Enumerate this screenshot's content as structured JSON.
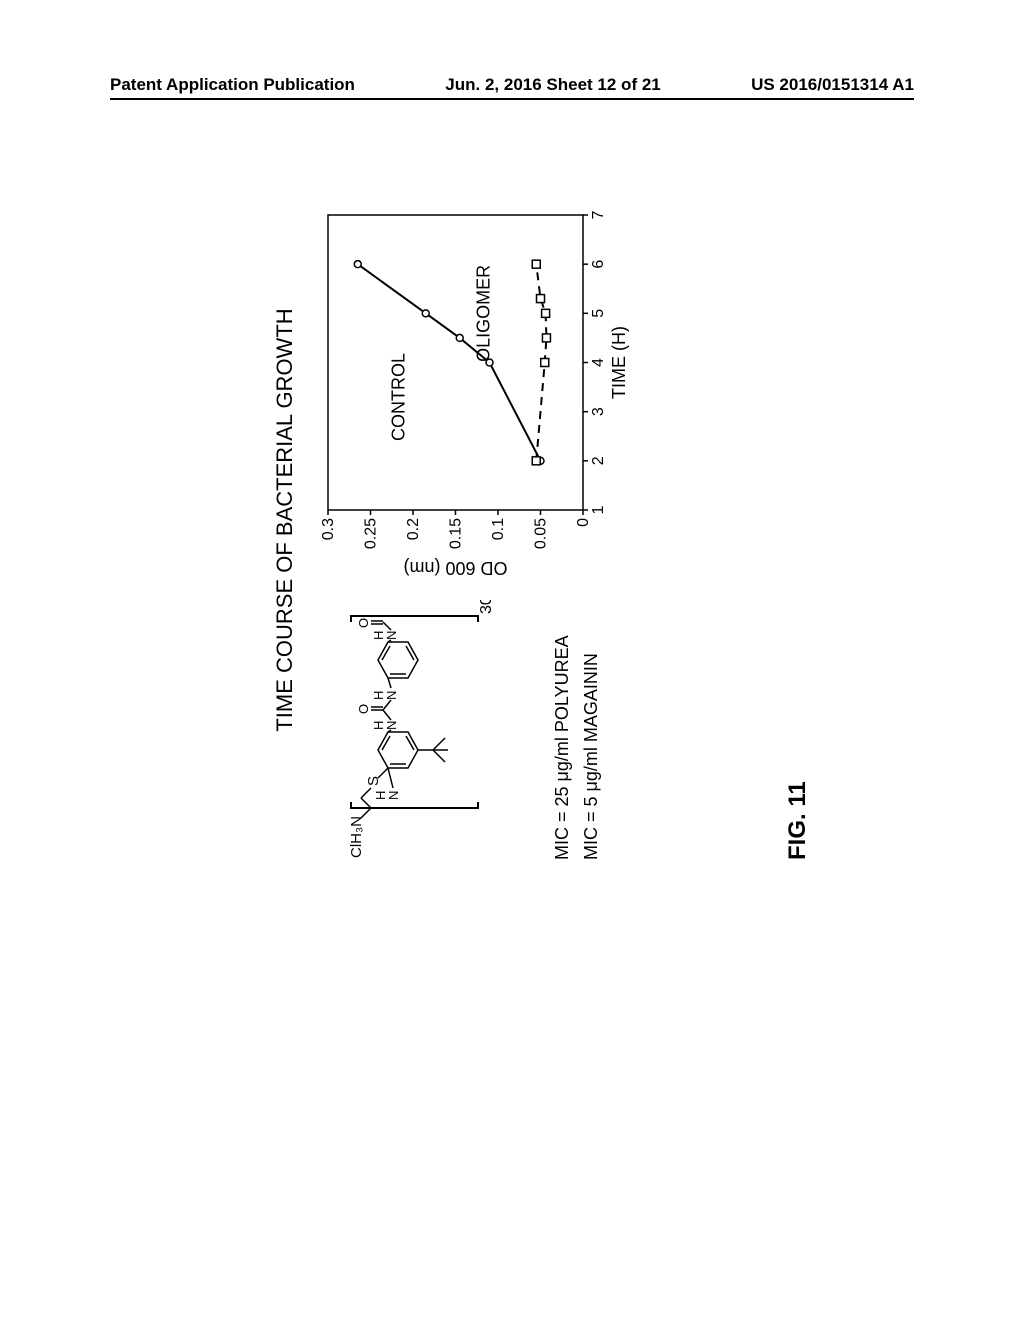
{
  "header": {
    "left": "Patent Application Publication",
    "center": "Jun. 2, 2016  Sheet 12 of 21",
    "right": "US 2016/0151314 A1"
  },
  "figure": {
    "title": "TIME COURSE OF BACTERIAL GROWTH",
    "number": "FIG. 11",
    "mic": {
      "line1": "MIC  =  25 μg/ml  POLYUREA",
      "line2": "MIC  =  5 μg/ml  MAGAININ"
    },
    "chemical": {
      "label_cih3n": "ClH₃N",
      "label_s": "S",
      "label_h": "H",
      "label_n": "N",
      "label_o": "O",
      "subscript_30": "30",
      "bracket_open": true,
      "bracket_close": true
    },
    "chart": {
      "type": "line",
      "xlabel": "TIME (H)",
      "ylabel": "OD 600 (nm)",
      "xlim": [
        1,
        7
      ],
      "ylim": [
        0,
        0.3
      ],
      "xticks": [
        1,
        2,
        3,
        4,
        5,
        6,
        7
      ],
      "yticks": [
        0,
        0.05,
        0.1,
        0.15,
        0.2,
        0.25,
        0.3
      ],
      "background_color": "#ffffff",
      "axis_color": "#000000",
      "line_width": 2,
      "series": [
        {
          "name": "CONTROL",
          "marker": "circle",
          "marker_size": 7,
          "line_style": "solid",
          "color": "#000000",
          "label_x": 3.3,
          "label_y": 0.21,
          "data": [
            {
              "x": 2,
              "y": 0.05
            },
            {
              "x": 4,
              "y": 0.11
            },
            {
              "x": 4.5,
              "y": 0.145
            },
            {
              "x": 5,
              "y": 0.185
            },
            {
              "x": 6,
              "y": 0.265
            }
          ]
        },
        {
          "name": "OLIGOMER",
          "marker": "square",
          "marker_size": 8,
          "line_style": "dashed",
          "color": "#000000",
          "label_x": 5.0,
          "label_y": 0.11,
          "data": [
            {
              "x": 2,
              "y": 0.055
            },
            {
              "x": 4,
              "y": 0.045
            },
            {
              "x": 4.5,
              "y": 0.043
            },
            {
              "x": 5,
              "y": 0.044
            },
            {
              "x": 5.3,
              "y": 0.05
            },
            {
              "x": 6,
              "y": 0.055
            }
          ]
        }
      ]
    }
  }
}
